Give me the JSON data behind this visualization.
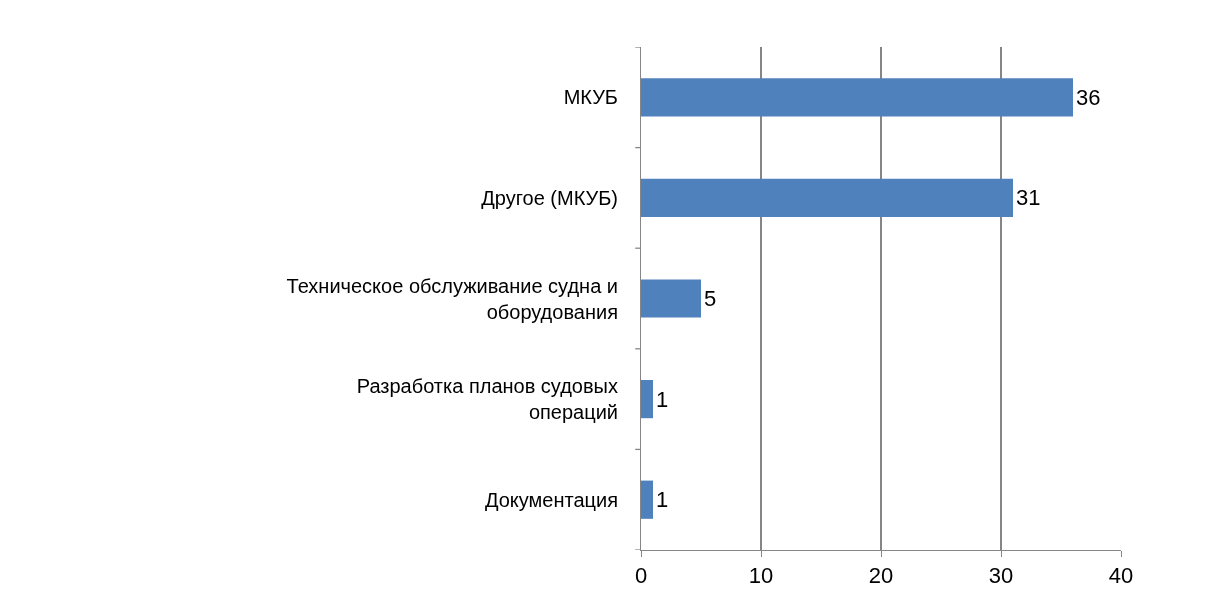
{
  "chart_data": {
    "type": "bar",
    "orientation": "horizontal",
    "categories": [
      "МКУБ",
      "Другое (МКУБ)",
      "Техническое обслуживание судна и оборудования",
      "Разработка планов судовых операций",
      "Документация"
    ],
    "values": [
      36,
      31,
      5,
      1,
      1
    ],
    "color": "#4f81bd",
    "xlim": [
      0,
      40
    ],
    "xticks": [
      0,
      10,
      20,
      30,
      40
    ],
    "grid": "x",
    "data_labels": true
  }
}
